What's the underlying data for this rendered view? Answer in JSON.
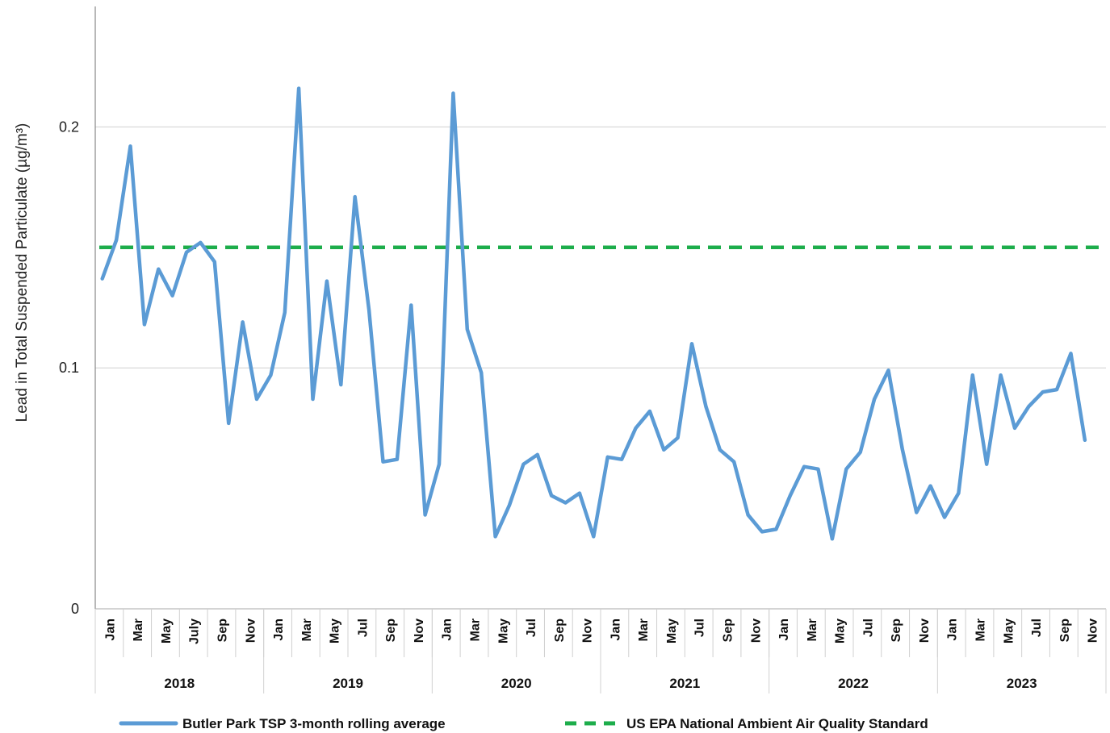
{
  "chart_data": {
    "type": "line",
    "title": "",
    "ylabel": "Lead in Total Suspended Particulate (µg/m³)",
    "ylim": [
      0,
      0.25
    ],
    "yticks": [
      0,
      0.1,
      0.2
    ],
    "ytick_labels": [
      "0",
      "0.1",
      "0.2"
    ],
    "grid": "horizontal",
    "legend_position": "bottom",
    "x_tick_labels": [
      "Jan",
      "Mar",
      "May",
      "July",
      "Sep",
      "Nov",
      "Jan",
      "Mar",
      "May",
      "Jul",
      "Sep",
      "Nov",
      "Jan",
      "Mar",
      "May",
      "Jul",
      "Sep",
      "Nov",
      "Jan",
      "Mar",
      "May",
      "Jul",
      "Sep",
      "Nov",
      "Jan",
      "Mar",
      "May",
      "Jul",
      "Sep",
      "Nov",
      "Jan",
      "Mar",
      "May",
      "Jul",
      "Sep",
      "Nov"
    ],
    "year_groups": [
      "2018",
      "2019",
      "2020",
      "2021",
      "2022",
      "2023"
    ],
    "series": [
      {
        "name": "Butler Park TSP 3-month rolling average",
        "color": "#5B9BD5",
        "style": "solid",
        "values": [
          0.137,
          0.153,
          0.192,
          0.118,
          0.141,
          0.13,
          0.148,
          0.152,
          0.144,
          0.077,
          0.119,
          0.087,
          0.097,
          0.123,
          0.216,
          0.087,
          0.136,
          0.093,
          0.171,
          0.124,
          0.061,
          0.062,
          0.126,
          0.039,
          0.06,
          0.214,
          0.116,
          0.098,
          0.03,
          0.043,
          0.06,
          0.064,
          0.047,
          0.044,
          0.048,
          0.03,
          0.063,
          0.062,
          0.075,
          0.082,
          0.066,
          0.071,
          0.11,
          0.084,
          0.066,
          0.061,
          0.039,
          0.032,
          0.033,
          0.047,
          0.059,
          0.058,
          0.029,
          0.058,
          0.065,
          0.087,
          0.099,
          0.066,
          0.04,
          0.051,
          0.038,
          0.048,
          0.097,
          0.06,
          0.097,
          0.075,
          0.084,
          0.09,
          0.091,
          0.106,
          0.07
        ]
      },
      {
        "name": "US EPA National Ambient Air Quality Standard",
        "color": "#1DAD4B",
        "style": "dashed",
        "value": 0.15
      }
    ]
  }
}
